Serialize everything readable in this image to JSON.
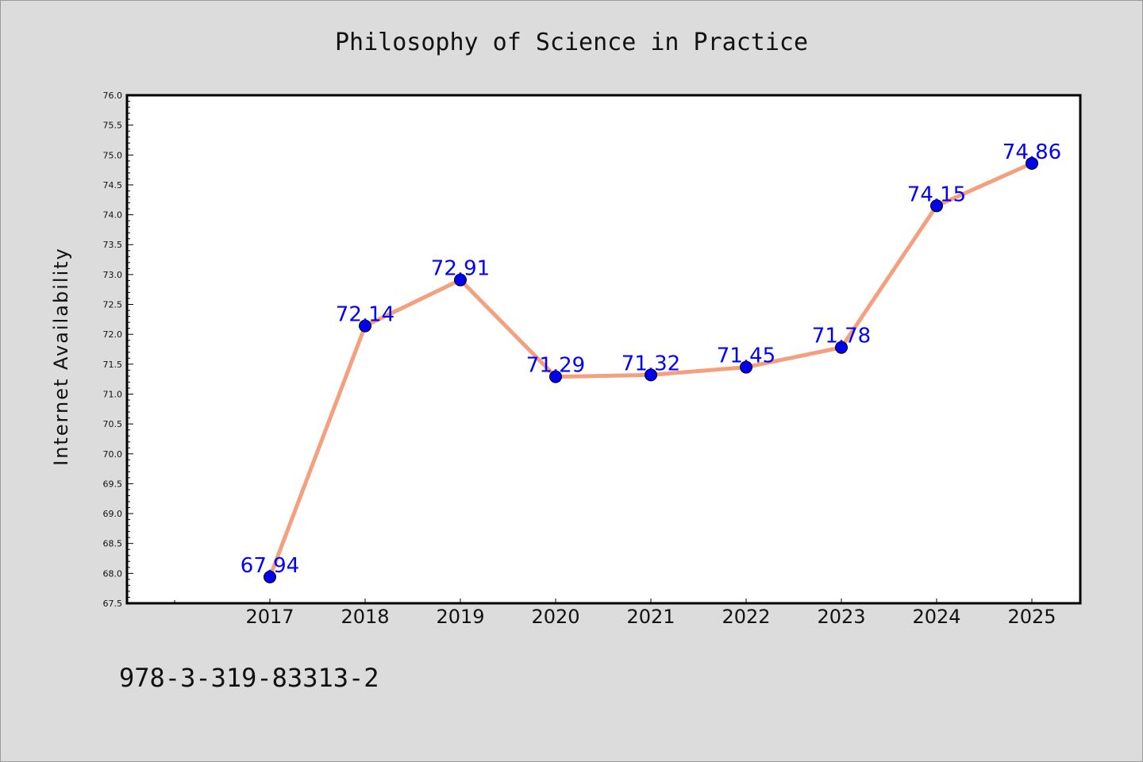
{
  "chart_data": {
    "type": "line",
    "title": "Philosophy of Science in Practice",
    "xlabel": "",
    "ylabel": "Internet Availability",
    "categories": [
      "2017",
      "2018",
      "2019",
      "2020",
      "2021",
      "2022",
      "2023",
      "2024",
      "2025"
    ],
    "series": [
      {
        "values": [
          67.94,
          72.14,
          72.91,
          71.29,
          71.32,
          71.45,
          71.78,
          74.15,
          74.86
        ],
        "data_labels": [
          "67.94",
          "72.14",
          "72.91",
          "71.29",
          "71.32",
          "71.45",
          "71.78",
          "74.15",
          "74.86"
        ],
        "line_color": "#f4a07e",
        "marker_color": "#0000ee"
      }
    ],
    "ylim": [
      67.5,
      76.0
    ],
    "yticks": [
      "67.5",
      "68.0",
      "68.5",
      "69.0",
      "69.5",
      "70.0",
      "70.5",
      "71.0",
      "71.5",
      "72.0",
      "72.5",
      "73.0",
      "73.5",
      "74.0",
      "74.5",
      "75.0",
      "75.5",
      "76.0"
    ],
    "grid": false,
    "legend": "none",
    "label_color": "#0000ff"
  },
  "footer": {
    "isbn": "978-3-319-83313-2"
  }
}
